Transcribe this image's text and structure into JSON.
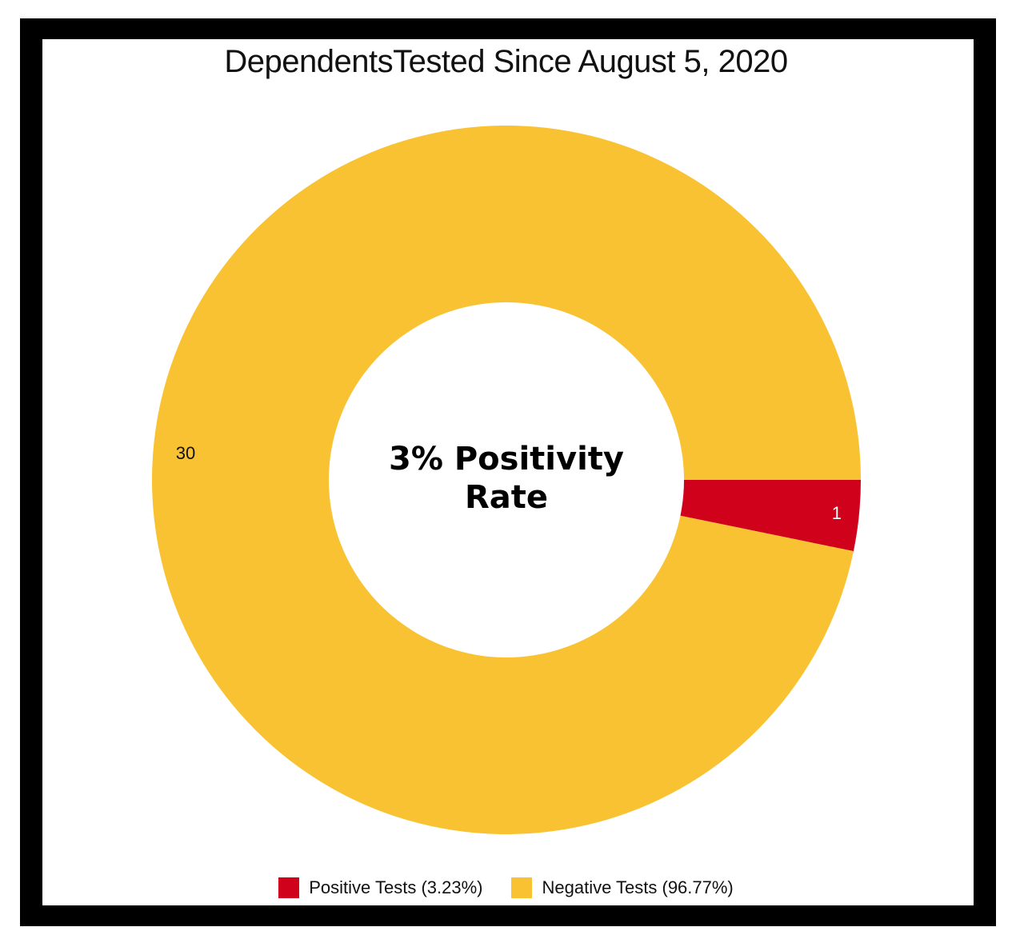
{
  "chart_data": {
    "type": "pie",
    "title": "DependentsTested Since August 5, 2020",
    "center_text": [
      "3% Positivity",
      "Rate"
    ],
    "slices": [
      {
        "label": "Positive Tests (3.23%)",
        "value": 1,
        "color": "#d0021b",
        "label_color": "#ffffff"
      },
      {
        "label": "Negative Tests (96.77%)",
        "value": 30,
        "color": "#f8c232",
        "label_color": "#111111"
      }
    ],
    "legend_placement": "bottom"
  }
}
